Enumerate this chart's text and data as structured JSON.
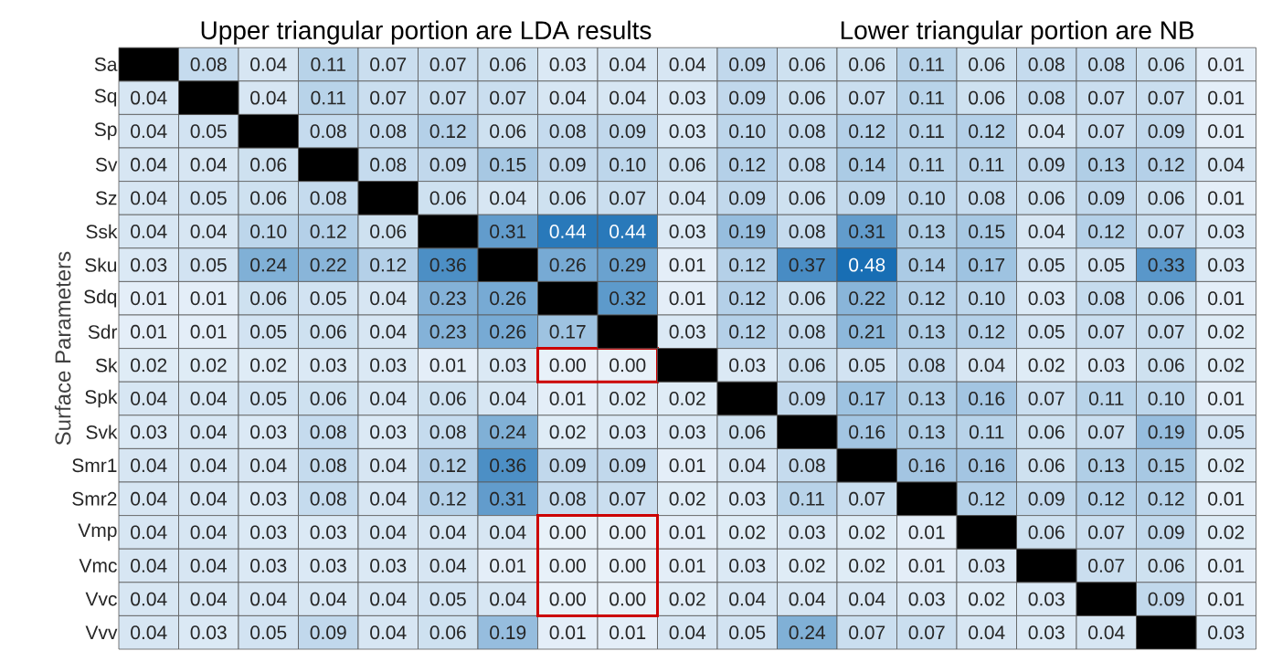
{
  "chart_data": {
    "type": "heatmap",
    "title": "Upper triangular portion are LDA results",
    "subtitle": "Lower triangular portion are NB",
    "ylabel": "Surface Parameters",
    "categories": [
      null,
      null,
      null,
      null,
      null,
      null,
      null,
      null,
      null,
      null,
      null,
      null,
      null,
      null,
      null,
      null,
      null,
      null,
      null
    ],
    "y_categories": [
      "Sa",
      "Sq",
      "Sp",
      "Sv",
      "Sz",
      "Ssk",
      "Sku",
      "Sdq",
      "Sdr",
      "Sk",
      "Spk",
      "Svk",
      "Smr1",
      "Smr2",
      "Vmp",
      "Vmc",
      "Vvc",
      "Vvv"
    ],
    "cells": [
      [
        null,
        0.08,
        0.04,
        0.11,
        0.07,
        0.07,
        0.06,
        0.03,
        0.04,
        0.04,
        0.09,
        0.06,
        0.06,
        0.11,
        0.06,
        0.08,
        0.08,
        0.06,
        0.01
      ],
      [
        0.04,
        null,
        0.04,
        0.11,
        0.07,
        0.07,
        0.07,
        0.04,
        0.04,
        0.03,
        0.09,
        0.06,
        0.07,
        0.11,
        0.06,
        0.08,
        0.07,
        0.07,
        0.01
      ],
      [
        0.04,
        0.05,
        null,
        0.08,
        0.08,
        0.12,
        0.06,
        0.08,
        0.09,
        0.03,
        0.1,
        0.08,
        0.12,
        0.11,
        0.12,
        0.04,
        0.07,
        0.09,
        0.01
      ],
      [
        0.04,
        0.04,
        0.06,
        null,
        0.08,
        0.09,
        0.15,
        0.09,
        0.1,
        0.06,
        0.12,
        0.08,
        0.14,
        0.11,
        0.11,
        0.09,
        0.13,
        0.12,
        0.04
      ],
      [
        0.04,
        0.05,
        0.06,
        0.08,
        null,
        0.06,
        0.04,
        0.06,
        0.07,
        0.04,
        0.09,
        0.06,
        0.09,
        0.1,
        0.08,
        0.06,
        0.09,
        0.06,
        0.01
      ],
      [
        0.04,
        0.04,
        0.1,
        0.12,
        0.06,
        null,
        0.31,
        0.44,
        0.44,
        0.03,
        0.19,
        0.08,
        0.31,
        0.13,
        0.15,
        0.04,
        0.12,
        0.07,
        0.03
      ],
      [
        0.03,
        0.05,
        0.24,
        0.22,
        0.12,
        0.36,
        null,
        0.26,
        0.29,
        0.01,
        0.12,
        0.37,
        0.48,
        0.14,
        0.17,
        0.05,
        0.05,
        0.33,
        0.03
      ],
      [
        0.01,
        0.01,
        0.06,
        0.05,
        0.04,
        0.23,
        0.26,
        null,
        0.32,
        0.01,
        0.12,
        0.06,
        0.22,
        0.12,
        0.1,
        0.03,
        0.08,
        0.06,
        0.01
      ],
      [
        0.01,
        0.01,
        0.05,
        0.06,
        0.04,
        0.23,
        0.26,
        0.17,
        null,
        0.03,
        0.12,
        0.08,
        0.21,
        0.13,
        0.12,
        0.05,
        0.07,
        0.07,
        0.02
      ],
      [
        0.02,
        0.02,
        0.02,
        0.03,
        0.03,
        0.01,
        0.03,
        0.0,
        0.0,
        null,
        0.03,
        0.06,
        0.05,
        0.08,
        0.04,
        0.02,
        0.03,
        0.06,
        0.02
      ],
      [
        0.04,
        0.04,
        0.05,
        0.06,
        0.04,
        0.06,
        0.04,
        0.01,
        0.02,
        0.02,
        null,
        0.09,
        0.17,
        0.13,
        0.16,
        0.07,
        0.11,
        0.1,
        0.01
      ],
      [
        0.03,
        0.04,
        0.03,
        0.08,
        0.03,
        0.08,
        0.24,
        0.02,
        0.03,
        0.03,
        0.06,
        null,
        0.16,
        0.13,
        0.11,
        0.06,
        0.07,
        0.19,
        0.05
      ],
      [
        0.04,
        0.04,
        0.04,
        0.08,
        0.04,
        0.12,
        0.36,
        0.09,
        0.09,
        0.01,
        0.04,
        0.08,
        null,
        0.16,
        0.16,
        0.06,
        0.13,
        0.15,
        0.02
      ],
      [
        0.04,
        0.04,
        0.03,
        0.08,
        0.04,
        0.12,
        0.31,
        0.08,
        0.07,
        0.02,
        0.03,
        0.11,
        0.07,
        null,
        0.12,
        0.09,
        0.12,
        0.12,
        0.01
      ],
      [
        0.04,
        0.04,
        0.03,
        0.03,
        0.04,
        0.04,
        0.04,
        0.0,
        0.0,
        0.01,
        0.02,
        0.03,
        0.02,
        0.01,
        null,
        0.06,
        0.07,
        0.09,
        0.02
      ],
      [
        0.04,
        0.04,
        0.03,
        0.03,
        0.03,
        0.04,
        0.01,
        0.0,
        0.0,
        0.01,
        0.03,
        0.02,
        0.02,
        0.01,
        0.03,
        null,
        0.07,
        0.06,
        0.01
      ],
      [
        0.04,
        0.04,
        0.04,
        0.04,
        0.04,
        0.05,
        0.04,
        0.0,
        0.0,
        0.02,
        0.04,
        0.04,
        0.04,
        0.03,
        0.02,
        0.03,
        null,
        0.09,
        0.01
      ],
      [
        0.04,
        0.03,
        0.05,
        0.09,
        0.04,
        0.06,
        0.19,
        0.01,
        0.01,
        0.04,
        0.05,
        0.24,
        0.07,
        0.07,
        0.04,
        0.03,
        0.04,
        null,
        0.03
      ]
    ],
    "cell_labels": [
      [
        null,
        "0.08",
        "0.04",
        "0.11",
        "0.07",
        "0.07",
        "0.06",
        "0.03",
        "0.04",
        "0.04",
        "0.09",
        "0.06",
        "0.06",
        "0.11",
        "0.06",
        "0.08",
        "0.08",
        "0.06",
        "0.01"
      ],
      [
        "0.04",
        null,
        "0.04",
        "0.11",
        "0.07",
        "0.07",
        "0.07",
        "0.04",
        "0.04",
        "0.03",
        "0.09",
        "0.06",
        "0.07",
        "0.11",
        "0.06",
        "0.08",
        "0.07",
        "0.07",
        "0.01"
      ],
      [
        "0.04",
        "0.05",
        null,
        "0.08",
        "0.08",
        "0.12",
        "0.06",
        "0.08",
        "0.09",
        "0.03",
        "0.10",
        "0.08",
        "0.12",
        "0.11",
        "0.12",
        "0.04",
        "0.07",
        "0.09",
        "0.01"
      ],
      [
        "0.04",
        "0.04",
        "0.06",
        null,
        "0.08",
        "0.09",
        "0.15",
        "0.09",
        "0.10",
        "0.06",
        "0.12",
        "0.08",
        "0.14",
        "0.11",
        "0.11",
        "0.09",
        "0.13",
        "0.12",
        "0.04"
      ],
      [
        "0.04",
        "0.05",
        "0.06",
        "0.08",
        null,
        "0.06",
        "0.04",
        "0.06",
        "0.07",
        "0.04",
        "0.09",
        "0.06",
        "0.09",
        "0.10",
        "0.08",
        "0.06",
        "0.09",
        "0.06",
        "0.01"
      ],
      [
        "0.04",
        "0.04",
        "0.10",
        "0.12",
        "0.06",
        null,
        "0.31",
        "0.44",
        "0.44",
        "0.03",
        "0.19",
        "0.08",
        "0.31",
        "0.13",
        "0.15",
        "0.04",
        "0.12",
        "0.07",
        "0.03"
      ],
      [
        "0.03",
        "0.05",
        "0.24",
        "0.22",
        "0.12",
        "0.36",
        null,
        "0.26",
        "0.29",
        "0.01",
        "0.12",
        "0.37",
        "0.48",
        "0.14",
        "0.17",
        "0.05",
        "0.05",
        "0.33",
        "0.03"
      ],
      [
        "0.01",
        "0.01",
        "0.06",
        "0.05",
        "0.04",
        "0.23",
        "0.26",
        null,
        "0.32",
        "0.01",
        "0.12",
        "0.06",
        "0.22",
        "0.12",
        "0.10",
        "0.03",
        "0.08",
        "0.06",
        "0.01"
      ],
      [
        "0.01",
        "0.01",
        "0.05",
        "0.06",
        "0.04",
        "0.23",
        "0.26",
        "0.17",
        null,
        "0.03",
        "0.12",
        "0.08",
        "0.21",
        "0.13",
        "0.12",
        "0.05",
        "0.07",
        "0.07",
        "0.02"
      ],
      [
        "0.02",
        "0.02",
        "0.02",
        "0.03",
        "0.03",
        "0.01",
        "0.03",
        "0.00",
        "0.00",
        null,
        "0.03",
        "0.06",
        "0.05",
        "0.08",
        "0.04",
        "0.02",
        "0.03",
        "0.06",
        "0.02"
      ],
      [
        "0.04",
        "0.04",
        "0.05",
        "0.06",
        "0.04",
        "0.06",
        "0.04",
        "0.01",
        "0.02",
        "0.02",
        null,
        "0.09",
        "0.17",
        "0.13",
        "0.16",
        "0.07",
        "0.11",
        "0.10",
        "0.01"
      ],
      [
        "0.03",
        "0.04",
        "0.03",
        "0.08",
        "0.03",
        "0.08",
        "0.24",
        "0.02",
        "0.03",
        "0.03",
        "0.06",
        null,
        "0.16",
        "0.13",
        "0.11",
        "0.06",
        "0.07",
        "0.19",
        "0.05"
      ],
      [
        "0.04",
        "0.04",
        "0.04",
        "0.08",
        "0.04",
        "0.12",
        "0.36",
        "0.09",
        "0.09",
        "0.01",
        "0.04",
        "0.08",
        null,
        "0.16",
        "0.16",
        "0.06",
        "0.13",
        "0.15",
        "0.02"
      ],
      [
        "0.04",
        "0.04",
        "0.03",
        "0.08",
        "0.04",
        "0.12",
        "0.31",
        "0.08",
        "0.07",
        "0.02",
        "0.03",
        "0.11",
        "0.07",
        null,
        "0.12",
        "0.09",
        "0.12",
        "0.12",
        "0.01"
      ],
      [
        "0.04",
        "0.04",
        "0.03",
        "0.03",
        "0.04",
        "0.04",
        "0.04",
        "0.00",
        "0.00",
        "0.01",
        "0.02",
        "0.03",
        "0.02",
        "0.01",
        null,
        "0.06",
        "0.07",
        "0.09",
        "0.02"
      ],
      [
        "0.04",
        "0.04",
        "0.03",
        "0.03",
        "0.03",
        "0.04",
        "0.01",
        "0.00",
        "0.00",
        "0.01",
        "0.03",
        "0.02",
        "0.02",
        "0.01",
        "0.03",
        null,
        "0.07",
        "0.06",
        "0.01"
      ],
      [
        "0.04",
        "0.04",
        "0.04",
        "0.04",
        "0.04",
        "0.05",
        "0.04",
        "0.00",
        "0.00",
        "0.02",
        "0.04",
        "0.04",
        "0.04",
        "0.03",
        "0.02",
        "0.03",
        null,
        "0.09",
        "0.01"
      ],
      [
        "0.04",
        "0.03",
        "0.05",
        "0.09",
        "0.04",
        "0.06",
        "0.19",
        "0.01",
        "0.01",
        "0.04",
        "0.05",
        "0.24",
        "0.07",
        "0.07",
        "0.04",
        "0.03",
        "0.04",
        null,
        "0.03"
      ]
    ]
  }
}
